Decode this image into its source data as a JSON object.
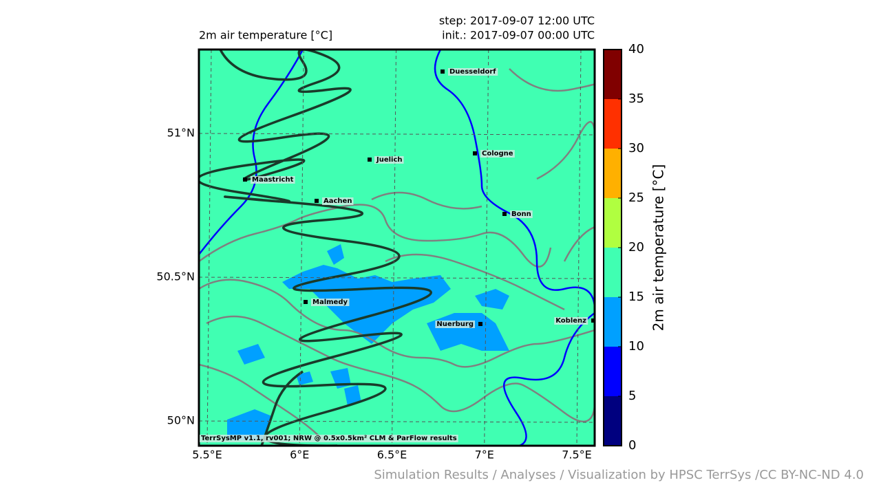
{
  "map": {
    "title": "2m air temperature [°C]",
    "step": "step: 2017-09-07 12:00 UTC",
    "init": "init.: 2017-09-07 00:00 UTC",
    "lon_ticks": [
      {
        "value": 5.5,
        "label": "5.5°E"
      },
      {
        "value": 6,
        "label": "6°E"
      },
      {
        "value": 6.5,
        "label": "6.5°E"
      },
      {
        "value": 7,
        "label": "7°E"
      },
      {
        "value": 7.5,
        "label": "7.5°E"
      }
    ],
    "lat_ticks": [
      {
        "value": 50,
        "label": "50°N"
      },
      {
        "value": 50.5,
        "label": "50.5°N"
      },
      {
        "value": 51,
        "label": "51°N"
      }
    ],
    "cities": [
      "Duesseldorf",
      "Cologne",
      "Juelich",
      "Maastricht",
      "Aachen",
      "Bonn",
      "Malmedy",
      "Nuerburg",
      "Koblenz"
    ],
    "footer": "TerrSysMP v1.1, rv001; NRW @ 0.5x0.5km² CLM & ParFlow results",
    "colorbar": {
      "label": "2m air temperature [°C]",
      "ylim": [
        0,
        40
      ],
      "ticks": [
        0,
        5,
        10,
        15,
        20,
        25,
        30,
        35,
        40
      ],
      "colors": [
        "#00007f",
        "#0000ff",
        "#00a0ff",
        "#40ffb2",
        "#b0ff40",
        "#ffb000",
        "#ff3000",
        "#800000"
      ]
    },
    "credit": "Simulation Results / Analyses / Visualization by HPSC TerrSys /CC BY-NC-ND 4.0"
  }
}
